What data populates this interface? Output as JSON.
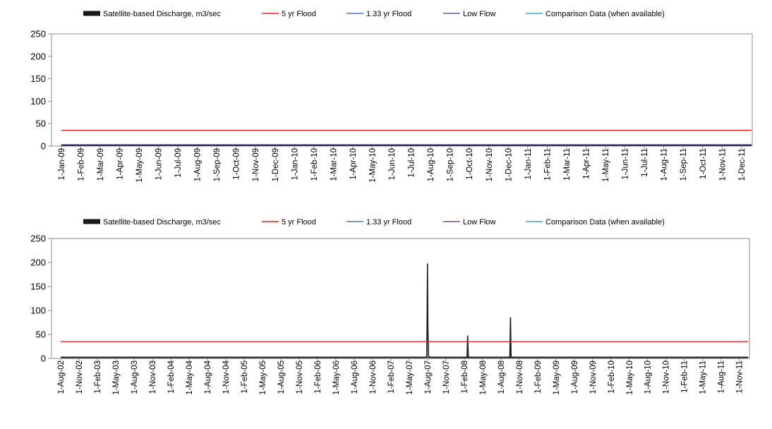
{
  "legend": [
    {
      "label": "Satellite-based Discharge, m3/sec",
      "color": "#1a1a1a",
      "style": "thick"
    },
    {
      "label": "5 yr Flood",
      "color": "#e8201e",
      "style": "line"
    },
    {
      "label": "1.33 yr Flood",
      "color": "#4a78c4",
      "style": "line"
    },
    {
      "label": "Low Flow",
      "color": "#7a4fa8",
      "style": "line"
    },
    {
      "label": "Comparison Data (when available)",
      "color": "#38a8c8",
      "style": "line"
    }
  ],
  "chart_data": [
    {
      "type": "line",
      "ylim": [
        0,
        250
      ],
      "yticks": [
        0,
        50,
        100,
        150,
        200,
        250
      ],
      "grid": false,
      "legend_position": "top",
      "x_tick_labels": [
        "1-Jan-09",
        "1-Feb-09",
        "1-Mar-09",
        "1-Apr-09",
        "1-May-09",
        "1-Jun-09",
        "1-Jul-09",
        "1-Aug-09",
        "1-Sep-09",
        "1-Oct-09",
        "1-Nov-09",
        "1-Dec-09",
        "1-Jan-10",
        "1-Feb-10",
        "1-Mar-10",
        "1-Apr-10",
        "1-May-10",
        "1-Jun-10",
        "1-Jul-10",
        "1-Aug-10",
        "1-Sep-10",
        "1-Oct-10",
        "1-Nov-10",
        "1-Dec-10",
        "1-Jan-11",
        "1-Feb-11",
        "1-Mar-11",
        "1-Apr-11",
        "1-May-11",
        "1-Jun-11",
        "1-Jul-11",
        "1-Aug-11",
        "1-Sep-11",
        "1-Oct-11",
        "1-Nov-11",
        "1-Dec-11"
      ],
      "series": [
        {
          "name": "Satellite-based Discharge, m3/sec",
          "color": "#1a1a1a",
          "x": [
            "1-Jan-09",
            "31-Dec-11"
          ],
          "values": [
            2,
            2
          ]
        },
        {
          "name": "5 yr Flood",
          "color": "#e8201e",
          "x": [
            "1-Jan-09",
            "31-Dec-11"
          ],
          "values": [
            35,
            35
          ]
        },
        {
          "name": "1.33 yr Flood",
          "color": "#4a78c4",
          "x": [
            "1-Jan-09",
            "31-Dec-11"
          ],
          "values": [
            3,
            3
          ]
        },
        {
          "name": "Low Flow",
          "color": "#7a4fa8",
          "x": [
            "1-Jan-09",
            "31-Dec-11"
          ],
          "values": [
            1,
            1
          ]
        },
        {
          "name": "Comparison Data (when available)",
          "color": "#38a8c8",
          "x": [
            "1-Jan-09",
            "31-Dec-11"
          ],
          "values": [
            2,
            2
          ]
        }
      ]
    },
    {
      "type": "line",
      "ylim": [
        0,
        250
      ],
      "yticks": [
        0,
        50,
        100,
        150,
        200,
        250
      ],
      "grid": false,
      "legend_position": "top",
      "x_tick_labels": [
        "1-Aug-02",
        "1-Nov-02",
        "1-Feb-03",
        "1-May-03",
        "1-Aug-03",
        "1-Nov-03",
        "1-Feb-04",
        "1-May-04",
        "1-Aug-04",
        "1-Nov-04",
        "1-Feb-05",
        "1-May-05",
        "1-Aug-05",
        "1-Nov-05",
        "1-Feb-06",
        "1-May-06",
        "1-Aug-06",
        "1-Nov-06",
        "1-Feb-07",
        "1-May-07",
        "1-Aug-07",
        "1-Nov-07",
        "1-Feb-08",
        "1-May-08",
        "1-Aug-08",
        "1-Nov-08",
        "1-Feb-09",
        "1-May-09",
        "1-Aug-09",
        "1-Nov-09",
        "1-Feb-10",
        "1-May-10",
        "1-Aug-10",
        "1-Nov-10",
        "1-Feb-11",
        "1-May-11",
        "1-Aug-11",
        "1-Nov-11"
      ],
      "series": [
        {
          "name": "Satellite-based Discharge, m3/sec",
          "color": "#1a1a1a",
          "x": [
            "1-Aug-02",
            "20-Jul-07",
            "28-Jul-07",
            "30-Jul-07",
            "1-Aug-07",
            "3-Aug-07",
            "6-Aug-07",
            "15-Aug-07",
            "15-Feb-08",
            "18-Feb-08",
            "21-Feb-08",
            "15-Sep-08",
            "18-Sep-08",
            "21-Sep-08",
            "15-Dec-11"
          ],
          "values": [
            2,
            2,
            4,
            85,
            197,
            60,
            4,
            2,
            2,
            47,
            2,
            2,
            85,
            2,
            2
          ]
        },
        {
          "name": "5 yr Flood",
          "color": "#e8201e",
          "x": [
            "1-Aug-02",
            "15-Dec-11"
          ],
          "values": [
            35,
            35
          ]
        },
        {
          "name": "1.33 yr Flood",
          "color": "#4a78c4",
          "x": [
            "1-Aug-02",
            "15-Dec-11"
          ],
          "values": [
            3,
            3
          ]
        },
        {
          "name": "Low Flow",
          "color": "#7a4fa8",
          "x": [
            "1-Aug-02",
            "15-Dec-11"
          ],
          "values": [
            1,
            1
          ]
        },
        {
          "name": "Comparison Data (when available)",
          "color": "#38a8c8",
          "x": [
            "1-Aug-02",
            "15-Dec-11"
          ],
          "values": [
            2,
            2
          ]
        }
      ]
    }
  ]
}
